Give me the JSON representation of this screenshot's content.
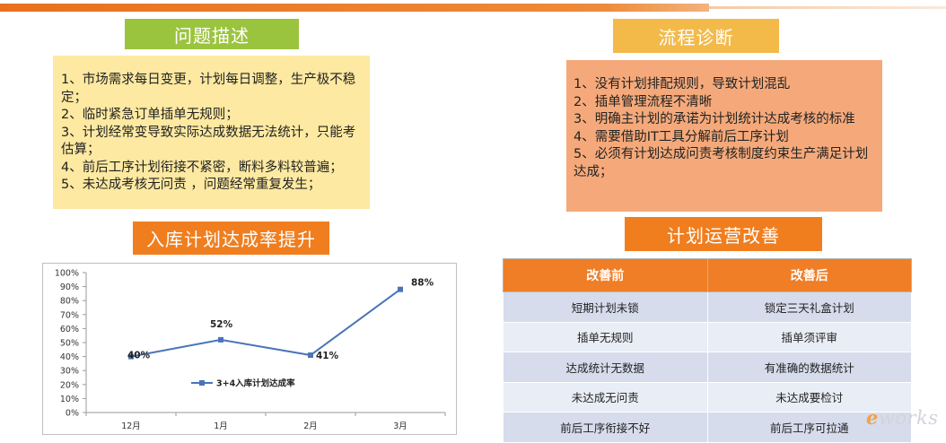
{
  "problem": {
    "title": "问题描述",
    "lines": [
      "1、市场需求每日变更，计划每日调整，生产极不稳定；",
      "2、临时紧急订单插单无规则；",
      "3、计划经常变导致实际达成数据无法统计，只能考估算；",
      "4、前后工序计划衔接不紧密，断料多料较普遍；",
      "5、未达成考核无问责 ，问题经常重复发生；"
    ]
  },
  "diagnosis": {
    "title": "流程诊断",
    "lines": [
      "1、没有计划排配规则，导致计划混乱",
      "2、插单管理流程不清晰",
      "3、明确主计划的承诺为计划统计达成考核的标准",
      "4、需要借助IT工具分解前后工序计划",
      "5、必须有计划达成问责考核制度约束生产满足计划达成；"
    ]
  },
  "chart_section": {
    "title": "入库计划达成率提升"
  },
  "improve_section": {
    "title": "计划运营改善"
  },
  "comparison": {
    "headers": [
      "改善前",
      "改善后"
    ],
    "rows": [
      [
        "短期计划未锁",
        "锁定三天礼盒计划"
      ],
      [
        "插单无规则",
        "插单须评审"
      ],
      [
        "达成统计无数据",
        "有准确的数据统计"
      ],
      [
        "未达成无问责",
        "未达成要检讨"
      ],
      [
        "前后工序衔接不好",
        "前后工序可拉通"
      ]
    ]
  },
  "chart_data": {
    "type": "line",
    "categories": [
      "12月",
      "1月",
      "2月",
      "3月"
    ],
    "series": [
      {
        "name": "3+4入库计划达成率",
        "values": [
          40,
          52,
          41,
          88
        ],
        "labels": [
          "40%",
          "52%",
          "41%",
          "88%"
        ]
      }
    ],
    "ylim": [
      0,
      100
    ],
    "yticks": [
      "0%",
      "10%",
      "20%",
      "30%",
      "40%",
      "50%",
      "60%",
      "70%",
      "80%",
      "90%",
      "100%"
    ],
    "grid": false,
    "legend": "center",
    "color": "#4a74b8"
  },
  "logo": {
    "prefix": "e",
    "text": "works"
  },
  "colors": {
    "green": "#9bc43e",
    "gold": "#f3ba4a",
    "orange": "#f07e1f",
    "problem_bg": "#fde9a1",
    "diagnosis_bg": "#f5a97a",
    "table_header": "#ef7e26"
  }
}
